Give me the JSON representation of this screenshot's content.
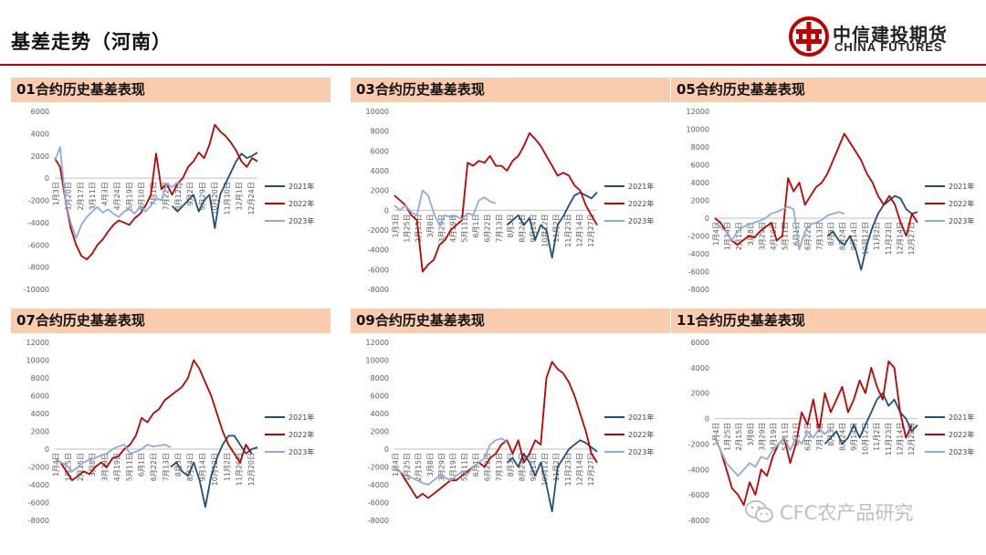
{
  "page": {
    "title": "基差走势（河南）",
    "logo_cn": "中信建投期货",
    "logo_en": "CHINA FUTURES",
    "watermark": "CFC农产品研究",
    "accent_color": "#c00000",
    "panel_title_bg": "#f8ccad"
  },
  "legend": [
    "2021年",
    "2022年",
    "2023年"
  ],
  "series_colors": [
    "#1f4e79",
    "#c00000",
    "#8faadc"
  ],
  "chart_data": [
    {
      "type": "line",
      "title": "01合约历史基差表现",
      "ylim": [
        -10000,
        6000
      ],
      "yticks": [
        6000,
        4000,
        2000,
        0,
        -2000,
        -4000,
        -6000,
        -8000,
        -10000
      ],
      "xticks": [
        "1月3日",
        "1月20日",
        "2月17日",
        "3月11日",
        "4月3日",
        "4月24日",
        "5月19日",
        "6月10日",
        "7月1日",
        "7月22日",
        "8月12日",
        "9月2日",
        "9月29日",
        "10月20日",
        "11月10日",
        "12月1日",
        "12月24日"
      ],
      "series": [
        {
          "name": "2021年",
          "values": [
            null,
            null,
            null,
            null,
            null,
            null,
            null,
            null,
            null,
            null,
            null,
            null,
            null,
            null,
            null,
            null,
            null,
            null,
            null,
            null,
            null,
            null,
            -2500,
            -3000,
            -2500,
            -2000,
            -1500,
            -3000,
            -2000,
            -1500,
            -4500,
            -1500,
            -500,
            500,
            1500,
            2200,
            1800,
            2000,
            2300
          ]
        },
        {
          "name": "2022年",
          "values": [
            1800,
            1000,
            -2000,
            -4500,
            -6000,
            -7000,
            -7300,
            -6800,
            -6000,
            -5500,
            -4800,
            -4200,
            -3800,
            -4000,
            -4200,
            -3600,
            -3200,
            -2500,
            -1500,
            2200,
            -1000,
            -500,
            -1500,
            -500,
            0,
            1000,
            1500,
            2300,
            1800,
            3000,
            4800,
            4200,
            3800,
            3200,
            2500,
            1500,
            1000,
            1800,
            1500
          ]
        },
        {
          "name": "2023年",
          "values": [
            1500,
            2800,
            -2000,
            -4000,
            -5400,
            -4200,
            -3500,
            -3000,
            -2600,
            -3100,
            -2800,
            -3200,
            -3500,
            -3000,
            -2800,
            -3200,
            -2500,
            -3000,
            -2500,
            -1800,
            -2000,
            -500,
            -800,
            -400,
            -600
          ]
        }
      ]
    },
    {
      "type": "line",
      "title": "03合约历史基差表现",
      "ylim": [
        -8000,
        10000
      ],
      "yticks": [
        10000,
        8000,
        6000,
        4000,
        2000,
        0,
        -2000,
        -4000,
        -6000,
        -8000
      ],
      "xticks": [
        "1月3日",
        "1月25日",
        "2月15日",
        "3月8日",
        "3月29日",
        "4月19日",
        "5月11日",
        "6月1日",
        "6月22日",
        "7月13日",
        "8月3日",
        "8月24日",
        "9月14日",
        "10月12日",
        "11月2日",
        "11月23日",
        "12月14日",
        "12月27日"
      ],
      "series": [
        {
          "name": "2021年",
          "values": [
            null,
            null,
            null,
            null,
            null,
            null,
            null,
            null,
            null,
            null,
            null,
            null,
            null,
            null,
            null,
            null,
            null,
            null,
            null,
            null,
            -1500,
            -1000,
            -500,
            -1500,
            -800,
            -3000,
            -1500,
            -2000,
            -4800,
            -1500,
            -600,
            500,
            1500,
            1800,
            1500,
            1200,
            1800
          ]
        },
        {
          "name": "2022年",
          "values": [
            1500,
            1000,
            500,
            -500,
            -1000,
            -6200,
            -5500,
            -5000,
            -3500,
            -3000,
            -2000,
            -1500,
            -1000,
            4800,
            4500,
            5000,
            4800,
            5500,
            4500,
            4500,
            4000,
            5000,
            5500,
            6500,
            7800,
            7200,
            6500,
            5500,
            4500,
            3500,
            3800,
            3500,
            2500,
            2000,
            500,
            -500,
            -1500
          ]
        },
        {
          "name": "2023年",
          "values": [
            500,
            0,
            500,
            -200,
            -500,
            2000,
            1500,
            -300,
            -1500,
            -500,
            -700,
            -600,
            -900,
            -300,
            -500,
            1000,
            1300,
            900,
            700
          ]
        }
      ]
    },
    {
      "type": "line",
      "title": "05合约历史基差表现",
      "ylim": [
        -8000,
        12000
      ],
      "yticks": [
        12000,
        10000,
        8000,
        6000,
        4000,
        2000,
        0,
        -2000,
        -4000,
        -6000,
        -8000
      ],
      "xticks": [
        "1月4日",
        "1月24日",
        "2月15日",
        "3月8日",
        "3月29日",
        "4月19日",
        "5月11日",
        "6月1日",
        "6月22日",
        "7月13日",
        "8月3日",
        "8月24日",
        "9月14日",
        "10月12日",
        "11月2日",
        "11月23日",
        "12月14日",
        "12月27日"
      ],
      "series": [
        {
          "name": "2021年",
          "values": [
            null,
            null,
            null,
            null,
            null,
            null,
            null,
            null,
            null,
            null,
            null,
            null,
            null,
            null,
            null,
            null,
            null,
            null,
            null,
            null,
            -2000,
            -1500,
            -2500,
            -3000,
            -2000,
            -3500,
            -5800,
            -3000,
            -1000,
            500,
            1500,
            2000,
            2500,
            2200,
            1000,
            500,
            700
          ]
        },
        {
          "name": "2022年",
          "values": [
            0,
            -500,
            -1500,
            -2500,
            -3000,
            -2500,
            -2000,
            -2200,
            -1500,
            -1000,
            -500,
            -2500,
            -2000,
            4500,
            3000,
            4000,
            1500,
            2500,
            3500,
            4000,
            5000,
            6500,
            8000,
            9500,
            8500,
            7500,
            6500,
            5000,
            4000,
            2500,
            1500,
            2500,
            1500,
            -500,
            -2000,
            500,
            -500
          ]
        },
        {
          "name": "2023年",
          "values": [
            -500,
            -1000,
            -1500,
            -2500,
            -1500,
            -1000,
            -700,
            -500,
            -300,
            0,
            500,
            700,
            1000,
            1300,
            1000,
            -3500,
            -1500,
            -700,
            -500,
            -200,
            300,
            500,
            700,
            500
          ]
        }
      ]
    },
    {
      "type": "line",
      "title": "07合约历史基差表现",
      "ylim": [
        -8000,
        12000
      ],
      "yticks": [
        12000,
        10000,
        8000,
        6000,
        4000,
        2000,
        0,
        -2000,
        -4000,
        -6000,
        -8000
      ],
      "xticks": [
        "1月4日",
        "1月25日",
        "2月15日",
        "3月8日",
        "3月29日",
        "4月19日",
        "5月11日",
        "6月1日",
        "6月22日",
        "7月13日",
        "8月3日",
        "8月24日",
        "9月14日",
        "10月12日",
        "11月2日",
        "11月26日",
        "12月20日"
      ],
      "series": [
        {
          "name": "2021年",
          "values": [
            null,
            null,
            null,
            null,
            null,
            null,
            null,
            null,
            null,
            null,
            null,
            null,
            null,
            null,
            null,
            null,
            null,
            null,
            null,
            null,
            -2000,
            -1500,
            -2500,
            -3000,
            -1500,
            -3500,
            -6500,
            -3000,
            -1000,
            500,
            1500,
            1500,
            500,
            -500,
            0,
            200
          ]
        },
        {
          "name": "2022年",
          "values": [
            -1000,
            -1500,
            -2500,
            -3500,
            -3000,
            -2500,
            -2800,
            -2000,
            -1500,
            -2000,
            -1000,
            -800,
            0,
            500,
            1500,
            3500,
            3000,
            4000,
            4500,
            5500,
            6000,
            6500,
            7000,
            8000,
            10000,
            9000,
            7500,
            6000,
            4000,
            2000,
            500,
            -500,
            -1500,
            500,
            -500
          ]
        },
        {
          "name": "2023年",
          "values": [
            -1000,
            -1500,
            -1800,
            -2500,
            -2000,
            -1500,
            -1200,
            -1000,
            -700,
            -500,
            0,
            300,
            500,
            -500,
            -300,
            0,
            500,
            300,
            400,
            500,
            200
          ]
        }
      ]
    },
    {
      "type": "line",
      "title": "09合约历史基差表现",
      "ylim": [
        -8000,
        12000
      ],
      "yticks": [
        12000,
        10000,
        8000,
        6000,
        4000,
        2000,
        0,
        -2000,
        -4000,
        -6000,
        -8000
      ],
      "xticks": [
        "1月4日",
        "1月25日",
        "2月15日",
        "3月8日",
        "3月29日",
        "4月19日",
        "5月11日",
        "6月1日",
        "6月22日",
        "7月13日",
        "8月3日",
        "8月24日",
        "9月14日",
        "10月12日",
        "11月2日",
        "11月23日",
        "12月14日",
        "12月27日"
      ],
      "series": [
        {
          "name": "2021年",
          "values": [
            null,
            null,
            null,
            null,
            null,
            null,
            null,
            null,
            null,
            null,
            null,
            null,
            null,
            null,
            null,
            null,
            null,
            null,
            null,
            null,
            -1500,
            -1000,
            -2000,
            -500,
            -1500,
            -3000,
            -1500,
            -4000,
            -7000,
            -2000,
            -1000,
            0,
            500,
            1000,
            700,
            200,
            -300
          ]
        },
        {
          "name": "2022年",
          "values": [
            -2000,
            -2500,
            -3500,
            -4500,
            -5500,
            -5000,
            -5500,
            -5000,
            -4500,
            -4000,
            -3500,
            -3500,
            -3000,
            -2500,
            -2000,
            -1500,
            -2000,
            -1000,
            -500,
            500,
            1000,
            -500,
            1000,
            -1500,
            -500,
            1000,
            500,
            8000,
            9800,
            9000,
            8500,
            7500,
            6000,
            4000,
            2000,
            -500,
            -1500
          ]
        },
        {
          "name": "2023年",
          "values": [
            -2000,
            -2500,
            -3000,
            -3200,
            -3500,
            -3800,
            -4000,
            -3500,
            -3000,
            -3200,
            -3500,
            -3000,
            -2500,
            -2800,
            -2000,
            -1500,
            -1000,
            500,
            1000,
            1200,
            800
          ]
        }
      ]
    },
    {
      "type": "line",
      "title": "11合约历史基差表现",
      "ylim": [
        -8000,
        6000
      ],
      "yticks": [
        6000,
        4000,
        2000,
        0,
        -2000,
        -4000,
        -6000,
        -8000
      ],
      "xticks": [
        "1月4日",
        "1月25日",
        "2月15日",
        "3月8日",
        "3月29日",
        "4月19日",
        "5月11日",
        "6月1日",
        "6月22日",
        "7月13日",
        "8月3日",
        "8月24日",
        "9月14日",
        "10月12日",
        "11月2日",
        "11月23日",
        "12月14日",
        "12月28日"
      ],
      "series": [
        {
          "name": "2021年",
          "values": [
            null,
            null,
            null,
            null,
            null,
            null,
            null,
            null,
            null,
            null,
            null,
            null,
            null,
            null,
            null,
            null,
            null,
            null,
            null,
            -2000,
            -1500,
            -1000,
            -2000,
            -1500,
            -500,
            -1500,
            -500,
            500,
            1500,
            2000,
            1000,
            1500,
            500,
            0,
            -1000,
            -500
          ]
        },
        {
          "name": "2022年",
          "values": [
            -1500,
            -2500,
            -4000,
            -5500,
            -6000,
            -6800,
            -5000,
            -6000,
            -4000,
            -4500,
            -3000,
            -2000,
            -1500,
            -3500,
            -2000,
            500,
            -500,
            1500,
            -1000,
            2000,
            500,
            1500,
            2500,
            500,
            1500,
            3000,
            2000,
            4000,
            2500,
            1500,
            4500,
            4000,
            500,
            -1500,
            -500
          ]
        },
        {
          "name": "2023年",
          "values": [
            -1500,
            -2500,
            -3500,
            -4000,
            -4500,
            -4000,
            -3500,
            -3800,
            -3000,
            -3200,
            -2500,
            -2000,
            -1500,
            -2500,
            -1500,
            -2000,
            -1000,
            -1500,
            -800,
            -1200,
            -800
          ]
        }
      ]
    }
  ]
}
